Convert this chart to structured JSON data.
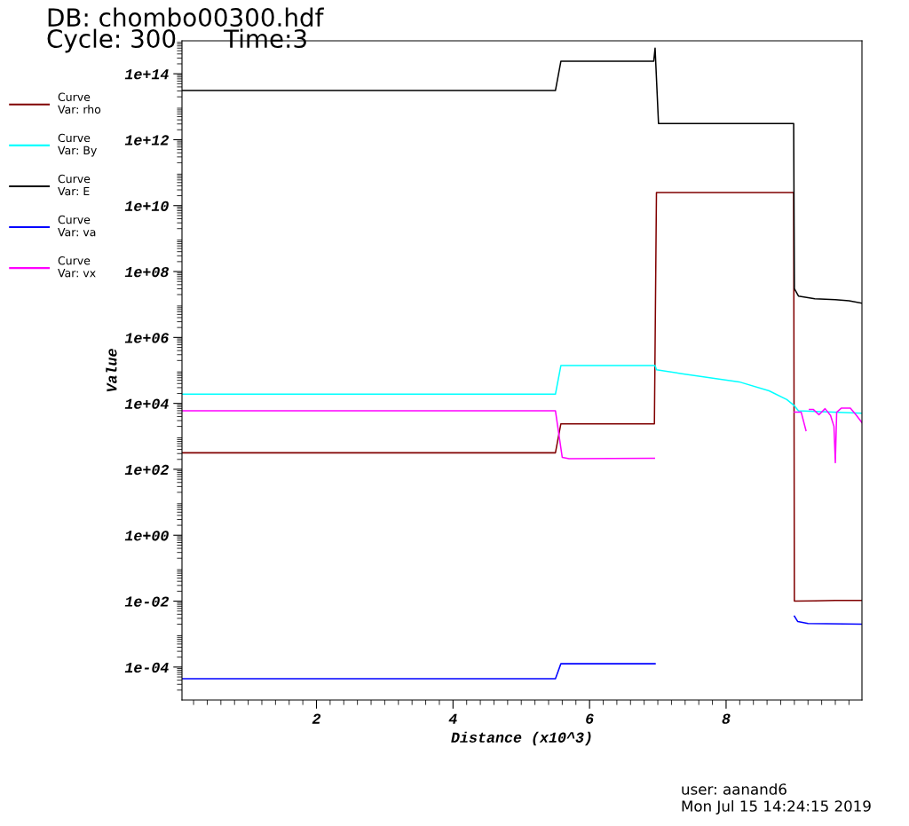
{
  "chart_data": {
    "type": "line",
    "title": "DB: chombo00300.hdf",
    "subtitle": "Cycle: 300      Time:3",
    "xlabel": "Distance (x10^3)",
    "ylabel": "Value",
    "annotations": [
      "user: aanand6",
      "Mon Jul 15 14:24:15 2019"
    ],
    "log": "y",
    "xlim": [
      0.03,
      9.99
    ],
    "ylim": [
      1e-05,
      1000000000000000.0
    ],
    "xticks": [
      2,
      4,
      6,
      8
    ],
    "yticks": [
      {
        "value": 0.0001,
        "label": "1e-04"
      },
      {
        "value": 0.01,
        "label": "1e-02"
      },
      {
        "value": 1,
        "label": "1e+00"
      },
      {
        "value": 100.0,
        "label": "1e+02"
      },
      {
        "value": 10000.0,
        "label": "1e+04"
      },
      {
        "value": 1000000.0,
        "label": "1e+06"
      },
      {
        "value": 100000000.0,
        "label": "1e+08"
      },
      {
        "value": 10000000000.0,
        "label": "1e+10"
      },
      {
        "value": 1000000000000.0,
        "label": "1e+12"
      },
      {
        "value": 100000000000000.0,
        "label": "1e+14"
      }
    ],
    "grid": false,
    "legend": "left",
    "marker": "none",
    "line_style": "solid",
    "series": [
      {
        "name": "Curve\nVar: rho",
        "color": "#800000",
        "x": [
          0.03,
          5.5,
          5.58,
          6.95,
          6.98,
          8.99,
          9.0,
          9.3,
          9.6,
          9.99
        ],
        "values": [
          316,
          316,
          2400,
          2400,
          25000000000.0,
          25000000000.0,
          0.01,
          0.0102,
          0.0105,
          0.0105
        ]
      },
      {
        "name": "Curve\nVar: By",
        "color": "#00ffff",
        "x": [
          0.03,
          5.5,
          5.58,
          6.96,
          6.98,
          7.33,
          8.19,
          8.63,
          8.89,
          8.99,
          9.06,
          9.99
        ],
        "values": [
          19000,
          19000,
          140000,
          140000,
          105000,
          81000,
          45000,
          24000,
          13000,
          8900,
          6000,
          5000
        ]
      },
      {
        "name": "Curve\nVar: E",
        "color": "#000000",
        "x": [
          0.03,
          5.5,
          5.58,
          6.94,
          6.96,
          7.01,
          8.99,
          9.0,
          9.06,
          9.3,
          9.6,
          9.8,
          9.99
        ],
        "values": [
          31000000000000.0,
          31000000000000.0,
          240000000000000.0,
          240000000000000.0,
          600000000000000.0,
          3100000000000.0,
          3100000000000.0,
          30000000.0,
          18000000.0,
          15000000.0,
          14000000.0,
          13000000.0,
          11000000.0
        ]
      },
      {
        "name": "Curve\nVar: va",
        "color": "#0000ff",
        "x": [
          0.03,
          5.5,
          5.58,
          6.96,
          6.98,
          7.0,
          8.98,
          9.0,
          9.05,
          9.2,
          9.99
        ],
        "values": [
          4.4e-05,
          4.4e-05,
          0.000126,
          0.000126,
          null,
          null,
          null,
          0.0035,
          0.0024,
          0.0021,
          0.002
        ]
      },
      {
        "name": "Curve\nVar: vx",
        "color": "#ff00ff",
        "x": [
          0.03,
          5.5,
          5.6,
          5.7,
          6.95,
          6.98,
          7.0,
          8.99,
          9.0,
          9.1,
          9.17,
          9.19,
          9.2,
          9.21,
          9.22,
          9.28,
          9.36,
          9.45,
          9.53,
          9.58,
          9.6,
          9.62,
          9.69,
          9.82,
          9.91,
          9.99
        ],
        "values": [
          6000,
          6000,
          230,
          210,
          215,
          null,
          null,
          null,
          5400,
          5400,
          1500,
          null,
          null,
          null,
          6500,
          6500,
          4500,
          6900,
          4300,
          2000,
          160,
          5400,
          7200,
          7200,
          4300,
          2600
        ]
      }
    ]
  }
}
